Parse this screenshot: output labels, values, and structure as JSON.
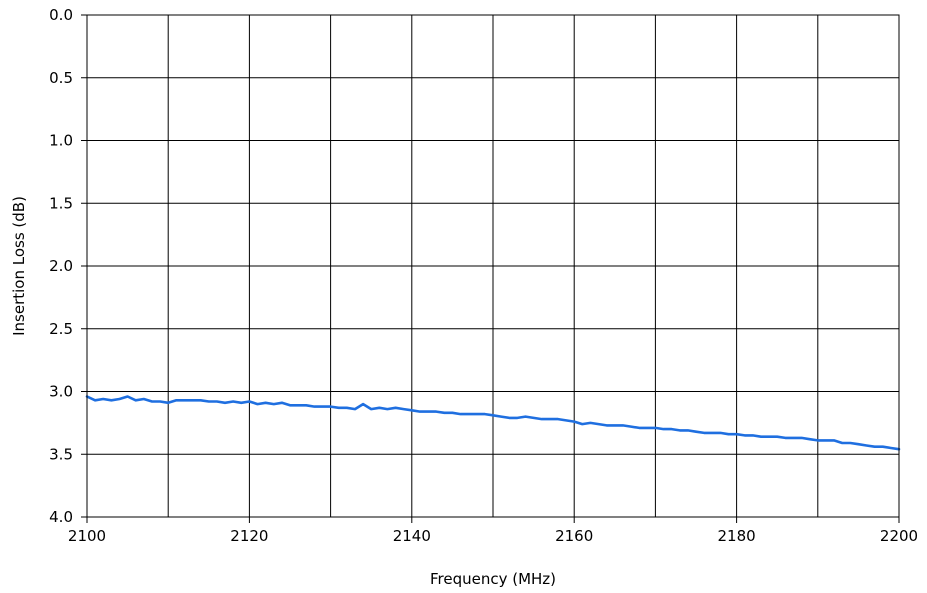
{
  "chart_data": {
    "type": "line",
    "title": "",
    "xlabel": "Frequency (MHz)",
    "ylabel": "Insertion Loss (dB)",
    "xlim": [
      2100,
      2200
    ],
    "ylim": [
      0.0,
      4.0
    ],
    "y_inverted": true,
    "grid": true,
    "legend": "none",
    "x_ticks": [
      "2100",
      "2120",
      "2140",
      "2160",
      "2180",
      "2200"
    ],
    "y_ticks": [
      "0.0",
      "0.5",
      "1.0",
      "1.5",
      "2.0",
      "2.5",
      "3.0",
      "3.5",
      "4.0"
    ],
    "series": [
      {
        "color": "#1f6fe0",
        "x": [
          2100,
          2101,
          2102,
          2103,
          2104,
          2105,
          2106,
          2107,
          2108,
          2109,
          2110,
          2111,
          2112,
          2113,
          2114,
          2115,
          2116,
          2117,
          2118,
          2119,
          2120,
          2121,
          2122,
          2123,
          2124,
          2125,
          2126,
          2127,
          2128,
          2129,
          2130,
          2131,
          2132,
          2133,
          2134,
          2135,
          2136,
          2137,
          2138,
          2139,
          2140,
          2141,
          2142,
          2143,
          2144,
          2145,
          2146,
          2147,
          2148,
          2149,
          2150,
          2151,
          2152,
          2153,
          2154,
          2155,
          2156,
          2157,
          2158,
          2159,
          2160,
          2161,
          2162,
          2163,
          2164,
          2165,
          2166,
          2167,
          2168,
          2169,
          2170,
          2171,
          2172,
          2173,
          2174,
          2175,
          2176,
          2177,
          2178,
          2179,
          2180,
          2181,
          2182,
          2183,
          2184,
          2185,
          2186,
          2187,
          2188,
          2189,
          2190,
          2191,
          2192,
          2193,
          2194,
          2195,
          2196,
          2197,
          2198,
          2199,
          2200
        ],
        "y": [
          3.04,
          3.07,
          3.06,
          3.07,
          3.06,
          3.04,
          3.07,
          3.06,
          3.08,
          3.08,
          3.09,
          3.07,
          3.07,
          3.07,
          3.07,
          3.08,
          3.08,
          3.09,
          3.08,
          3.09,
          3.08,
          3.1,
          3.09,
          3.1,
          3.09,
          3.11,
          3.11,
          3.11,
          3.12,
          3.12,
          3.12,
          3.13,
          3.13,
          3.14,
          3.1,
          3.14,
          3.13,
          3.14,
          3.13,
          3.14,
          3.15,
          3.16,
          3.16,
          3.16,
          3.17,
          3.17,
          3.18,
          3.18,
          3.18,
          3.18,
          3.19,
          3.2,
          3.21,
          3.21,
          3.2,
          3.21,
          3.22,
          3.22,
          3.22,
          3.23,
          3.24,
          3.26,
          3.25,
          3.26,
          3.27,
          3.27,
          3.27,
          3.28,
          3.29,
          3.29,
          3.29,
          3.3,
          3.3,
          3.31,
          3.31,
          3.32,
          3.33,
          3.33,
          3.33,
          3.34,
          3.34,
          3.35,
          3.35,
          3.36,
          3.36,
          3.36,
          3.37,
          3.37,
          3.37,
          3.38,
          3.39,
          3.39,
          3.39,
          3.41,
          3.41,
          3.42,
          3.43,
          3.44,
          3.44,
          3.45,
          3.46
        ]
      }
    ]
  }
}
